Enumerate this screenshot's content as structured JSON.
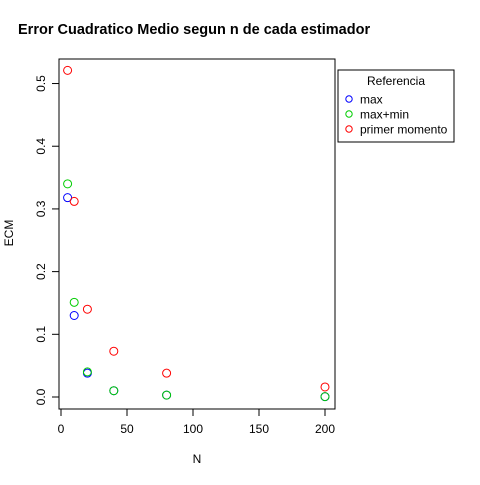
{
  "chart_data": {
    "type": "scatter",
    "title": "Error Cuadratico Medio segun n de cada estimador",
    "xlabel": "N",
    "ylabel": "ECM",
    "xlim": [
      0,
      200
    ],
    "ylim": [
      0,
      0.52
    ],
    "x_ticks": [
      {
        "value": 0,
        "label": "0"
      },
      {
        "value": 50,
        "label": "50"
      },
      {
        "value": 100,
        "label": "100"
      },
      {
        "value": 150,
        "label": "150"
      },
      {
        "value": 200,
        "label": "200"
      }
    ],
    "y_ticks": [
      {
        "value": 0,
        "label": "0.0"
      },
      {
        "value": 0.1,
        "label": "0.1"
      },
      {
        "value": 0.2,
        "label": "0.2"
      },
      {
        "value": 0.3,
        "label": "0.3"
      },
      {
        "value": 0.4,
        "label": "0.4"
      },
      {
        "value": 0.5,
        "label": "0.5"
      }
    ],
    "grid": false,
    "marker": "open-circle",
    "legend": {
      "title": "Referencia",
      "placement": "top-right, outside plot"
    },
    "series": [
      {
        "name": "max",
        "color": "#0000ff",
        "points": [
          {
            "x": 5,
            "y": 0.318
          },
          {
            "x": 10,
            "y": 0.13
          },
          {
            "x": 20,
            "y": 0.038
          },
          {
            "x": 40,
            "y": 0.01
          },
          {
            "x": 80,
            "y": 0.003
          },
          {
            "x": 200,
            "y": 0.0005
          }
        ]
      },
      {
        "name": "max+min",
        "color": "#00cd00",
        "points": [
          {
            "x": 5,
            "y": 0.34
          },
          {
            "x": 10,
            "y": 0.151
          },
          {
            "x": 20,
            "y": 0.04
          },
          {
            "x": 40,
            "y": 0.01
          },
          {
            "x": 80,
            "y": 0.003
          },
          {
            "x": 200,
            "y": 0.0006
          }
        ]
      },
      {
        "name": "primer momento",
        "color": "#ff0000",
        "points": [
          {
            "x": 5,
            "y": 0.521
          },
          {
            "x": 10,
            "y": 0.312
          },
          {
            "x": 20,
            "y": 0.14
          },
          {
            "x": 40,
            "y": 0.073
          },
          {
            "x": 80,
            "y": 0.038
          },
          {
            "x": 200,
            "y": 0.016
          }
        ]
      }
    ]
  }
}
